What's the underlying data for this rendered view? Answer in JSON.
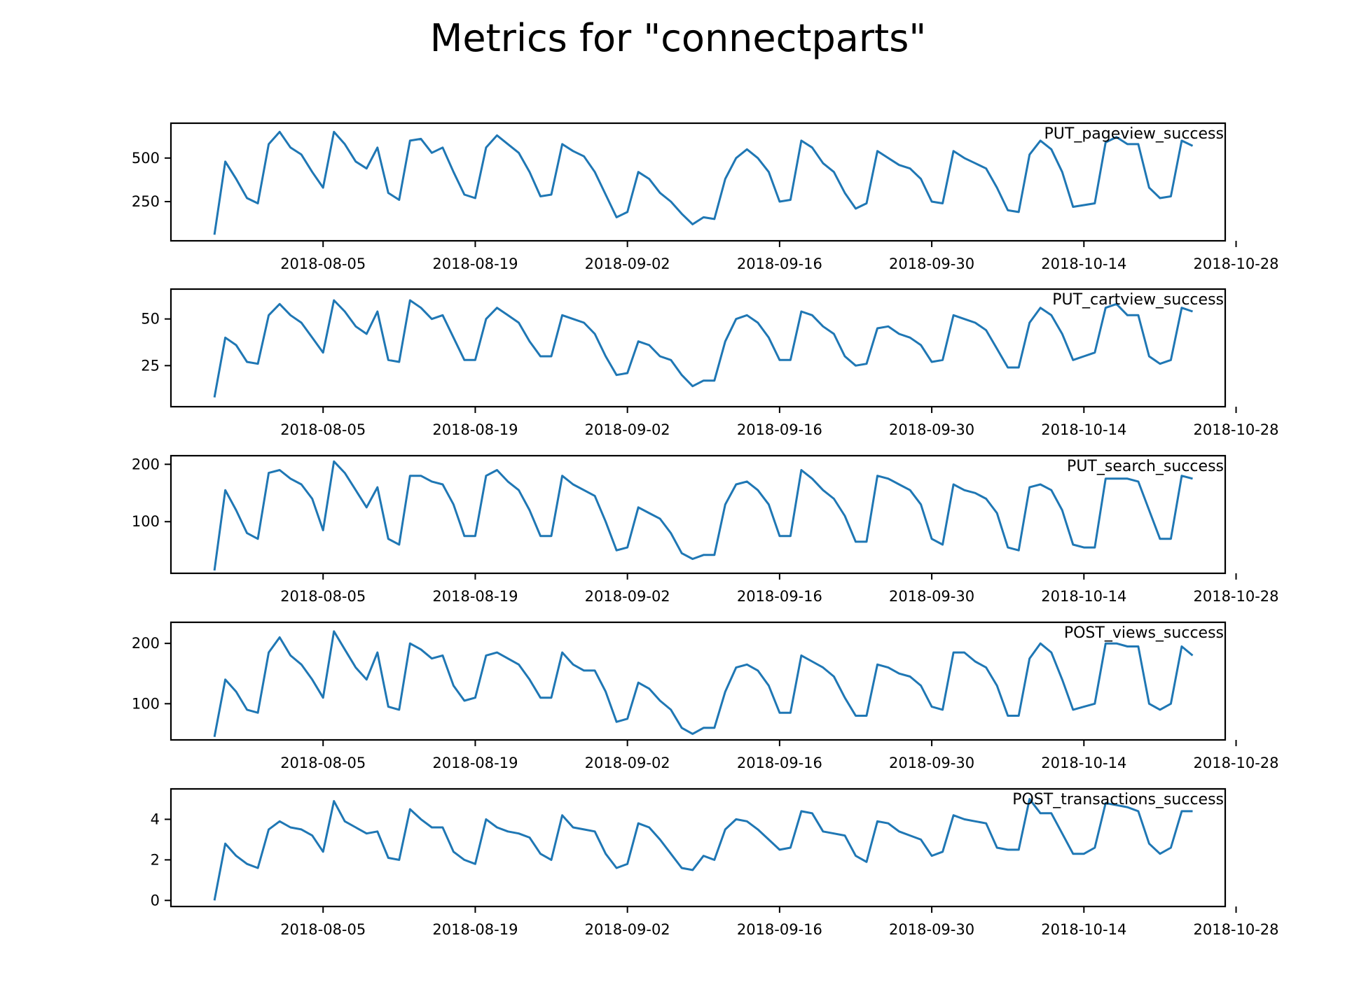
{
  "figure": {
    "title": "Metrics for \"connectparts\""
  },
  "colors": {
    "line": "#1f77b4",
    "axis": "#000000",
    "background": "#ffffff"
  },
  "chart_data": [
    {
      "type": "line",
      "label": "PUT_pageview_success",
      "xlim": [
        "2018-07-22",
        "2018-10-27"
      ],
      "ylim": [
        25,
        700
      ],
      "x_ticks": [
        "2018-08-05",
        "2018-08-19",
        "2018-09-02",
        "2018-09-16",
        "2018-09-30",
        "2018-10-14",
        "2018-10-28"
      ],
      "y_ticks": [
        250,
        500
      ],
      "x": [
        "2018-07-26",
        "2018-07-27",
        "2018-07-28",
        "2018-07-29",
        "2018-07-30",
        "2018-07-31",
        "2018-08-01",
        "2018-08-02",
        "2018-08-03",
        "2018-08-04",
        "2018-08-05",
        "2018-08-06",
        "2018-08-07",
        "2018-08-08",
        "2018-08-09",
        "2018-08-10",
        "2018-08-11",
        "2018-08-12",
        "2018-08-13",
        "2018-08-14",
        "2018-08-15",
        "2018-08-16",
        "2018-08-17",
        "2018-08-18",
        "2018-08-19",
        "2018-08-20",
        "2018-08-21",
        "2018-08-22",
        "2018-08-23",
        "2018-08-24",
        "2018-08-25",
        "2018-08-26",
        "2018-08-27",
        "2018-08-28",
        "2018-08-29",
        "2018-08-30",
        "2018-08-31",
        "2018-09-01",
        "2018-09-02",
        "2018-09-03",
        "2018-09-04",
        "2018-09-05",
        "2018-09-06",
        "2018-09-07",
        "2018-09-08",
        "2018-09-09",
        "2018-09-10",
        "2018-09-11",
        "2018-09-12",
        "2018-09-13",
        "2018-09-14",
        "2018-09-15",
        "2018-09-16",
        "2018-09-17",
        "2018-09-18",
        "2018-09-19",
        "2018-09-20",
        "2018-09-21",
        "2018-09-22",
        "2018-09-23",
        "2018-09-24",
        "2018-09-25",
        "2018-09-26",
        "2018-09-27",
        "2018-09-28",
        "2018-09-29",
        "2018-09-30",
        "2018-10-01",
        "2018-10-02",
        "2018-10-03",
        "2018-10-04",
        "2018-10-05",
        "2018-10-06",
        "2018-10-07",
        "2018-10-08",
        "2018-10-09",
        "2018-10-10",
        "2018-10-11",
        "2018-10-12",
        "2018-10-13",
        "2018-10-14",
        "2018-10-15",
        "2018-10-16",
        "2018-10-17",
        "2018-10-18",
        "2018-10-19",
        "2018-10-20",
        "2018-10-21",
        "2018-10-22",
        "2018-10-23",
        "2018-10-24"
      ],
      "values": [
        60,
        480,
        380,
        270,
        240,
        580,
        650,
        560,
        520,
        420,
        330,
        650,
        580,
        480,
        440,
        560,
        300,
        260,
        600,
        610,
        530,
        560,
        420,
        290,
        270,
        560,
        630,
        580,
        530,
        420,
        280,
        290,
        580,
        540,
        510,
        420,
        290,
        160,
        190,
        420,
        380,
        300,
        250,
        180,
        120,
        160,
        150,
        380,
        500,
        550,
        500,
        420,
        250,
        260,
        600,
        560,
        470,
        420,
        300,
        210,
        240,
        540,
        500,
        460,
        440,
        380,
        250,
        240,
        540,
        500,
        470,
        440,
        330,
        200,
        190,
        520,
        600,
        550,
        420,
        220,
        230,
        240,
        590,
        620,
        580,
        580,
        330,
        270,
        280,
        600,
        570
      ]
    },
    {
      "type": "line",
      "label": "PUT_cartview_success",
      "xlim": [
        "2018-07-22",
        "2018-10-27"
      ],
      "ylim": [
        3,
        66
      ],
      "x_ticks": [
        "2018-08-05",
        "2018-08-19",
        "2018-09-02",
        "2018-09-16",
        "2018-09-30",
        "2018-10-14",
        "2018-10-28"
      ],
      "y_ticks": [
        25,
        50
      ],
      "x": [
        "2018-07-26",
        "2018-07-27",
        "2018-07-28",
        "2018-07-29",
        "2018-07-30",
        "2018-07-31",
        "2018-08-01",
        "2018-08-02",
        "2018-08-03",
        "2018-08-04",
        "2018-08-05",
        "2018-08-06",
        "2018-08-07",
        "2018-08-08",
        "2018-08-09",
        "2018-08-10",
        "2018-08-11",
        "2018-08-12",
        "2018-08-13",
        "2018-08-14",
        "2018-08-15",
        "2018-08-16",
        "2018-08-17",
        "2018-08-18",
        "2018-08-19",
        "2018-08-20",
        "2018-08-21",
        "2018-08-22",
        "2018-08-23",
        "2018-08-24",
        "2018-08-25",
        "2018-08-26",
        "2018-08-27",
        "2018-08-28",
        "2018-08-29",
        "2018-08-30",
        "2018-08-31",
        "2018-09-01",
        "2018-09-02",
        "2018-09-03",
        "2018-09-04",
        "2018-09-05",
        "2018-09-06",
        "2018-09-07",
        "2018-09-08",
        "2018-09-09",
        "2018-09-10",
        "2018-09-11",
        "2018-09-12",
        "2018-09-13",
        "2018-09-14",
        "2018-09-15",
        "2018-09-16",
        "2018-09-17",
        "2018-09-18",
        "2018-09-19",
        "2018-09-20",
        "2018-09-21",
        "2018-09-22",
        "2018-09-23",
        "2018-09-24",
        "2018-09-25",
        "2018-09-26",
        "2018-09-27",
        "2018-09-28",
        "2018-09-29",
        "2018-09-30",
        "2018-10-01",
        "2018-10-02",
        "2018-10-03",
        "2018-10-04",
        "2018-10-05",
        "2018-10-06",
        "2018-10-07",
        "2018-10-08",
        "2018-10-09",
        "2018-10-10",
        "2018-10-11",
        "2018-10-12",
        "2018-10-13",
        "2018-10-14",
        "2018-10-15",
        "2018-10-16",
        "2018-10-17",
        "2018-10-18",
        "2018-10-19",
        "2018-10-20",
        "2018-10-21",
        "2018-10-22",
        "2018-10-23",
        "2018-10-24"
      ],
      "values": [
        8,
        40,
        36,
        27,
        26,
        52,
        58,
        52,
        48,
        40,
        32,
        60,
        54,
        46,
        42,
        54,
        28,
        27,
        60,
        56,
        50,
        52,
        40,
        28,
        28,
        50,
        56,
        52,
        48,
        38,
        30,
        30,
        52,
        50,
        48,
        42,
        30,
        20,
        21,
        38,
        36,
        30,
        28,
        20,
        14,
        17,
        17,
        38,
        50,
        52,
        48,
        40,
        28,
        28,
        54,
        52,
        46,
        42,
        30,
        25,
        26,
        45,
        46,
        42,
        40,
        36,
        27,
        28,
        52,
        50,
        48,
        44,
        34,
        24,
        24,
        48,
        56,
        52,
        42,
        28,
        30,
        32,
        56,
        58,
        52,
        52,
        30,
        26,
        28,
        56,
        54
      ]
    },
    {
      "type": "line",
      "label": "PUT_search_success",
      "xlim": [
        "2018-07-22",
        "2018-10-27"
      ],
      "ylim": [
        10,
        215
      ],
      "x_ticks": [
        "2018-08-05",
        "2018-08-19",
        "2018-09-02",
        "2018-09-16",
        "2018-09-30",
        "2018-10-14",
        "2018-10-28"
      ],
      "y_ticks": [
        100,
        200
      ],
      "x": [
        "2018-07-26",
        "2018-07-27",
        "2018-07-28",
        "2018-07-29",
        "2018-07-30",
        "2018-07-31",
        "2018-08-01",
        "2018-08-02",
        "2018-08-03",
        "2018-08-04",
        "2018-08-05",
        "2018-08-06",
        "2018-08-07",
        "2018-08-08",
        "2018-08-09",
        "2018-08-10",
        "2018-08-11",
        "2018-08-12",
        "2018-08-13",
        "2018-08-14",
        "2018-08-15",
        "2018-08-16",
        "2018-08-17",
        "2018-08-18",
        "2018-08-19",
        "2018-08-20",
        "2018-08-21",
        "2018-08-22",
        "2018-08-23",
        "2018-08-24",
        "2018-08-25",
        "2018-08-26",
        "2018-08-27",
        "2018-08-28",
        "2018-08-29",
        "2018-08-30",
        "2018-08-31",
        "2018-09-01",
        "2018-09-02",
        "2018-09-03",
        "2018-09-04",
        "2018-09-05",
        "2018-09-06",
        "2018-09-07",
        "2018-09-08",
        "2018-09-09",
        "2018-09-10",
        "2018-09-11",
        "2018-09-12",
        "2018-09-13",
        "2018-09-14",
        "2018-09-15",
        "2018-09-16",
        "2018-09-17",
        "2018-09-18",
        "2018-09-19",
        "2018-09-20",
        "2018-09-21",
        "2018-09-22",
        "2018-09-23",
        "2018-09-24",
        "2018-09-25",
        "2018-09-26",
        "2018-09-27",
        "2018-09-28",
        "2018-09-29",
        "2018-09-30",
        "2018-10-01",
        "2018-10-02",
        "2018-10-03",
        "2018-10-04",
        "2018-10-05",
        "2018-10-06",
        "2018-10-07",
        "2018-10-08",
        "2018-10-09",
        "2018-10-10",
        "2018-10-11",
        "2018-10-12",
        "2018-10-13",
        "2018-10-14",
        "2018-10-15",
        "2018-10-16",
        "2018-10-17",
        "2018-10-18",
        "2018-10-19",
        "2018-10-20",
        "2018-10-21",
        "2018-10-22",
        "2018-10-23",
        "2018-10-24"
      ],
      "values": [
        15,
        155,
        120,
        80,
        70,
        185,
        190,
        175,
        165,
        140,
        85,
        205,
        185,
        155,
        125,
        160,
        70,
        60,
        180,
        180,
        170,
        165,
        130,
        75,
        75,
        180,
        190,
        170,
        155,
        120,
        75,
        75,
        180,
        165,
        155,
        145,
        100,
        50,
        55,
        125,
        115,
        105,
        80,
        45,
        35,
        42,
        42,
        130,
        165,
        170,
        155,
        130,
        75,
        75,
        190,
        175,
        155,
        140,
        110,
        65,
        65,
        180,
        175,
        165,
        155,
        130,
        70,
        60,
        165,
        155,
        150,
        140,
        115,
        55,
        50,
        160,
        165,
        155,
        120,
        60,
        55,
        55,
        175,
        175,
        175,
        170,
        120,
        70,
        70,
        180,
        175
      ]
    },
    {
      "type": "line",
      "label": "POST_views_success",
      "xlim": [
        "2018-07-22",
        "2018-10-27"
      ],
      "ylim": [
        40,
        235
      ],
      "x_ticks": [
        "2018-08-05",
        "2018-08-19",
        "2018-09-02",
        "2018-09-16",
        "2018-09-30",
        "2018-10-14",
        "2018-10-28"
      ],
      "y_ticks": [
        100,
        200
      ],
      "x": [
        "2018-07-26",
        "2018-07-27",
        "2018-07-28",
        "2018-07-29",
        "2018-07-30",
        "2018-07-31",
        "2018-08-01",
        "2018-08-02",
        "2018-08-03",
        "2018-08-04",
        "2018-08-05",
        "2018-08-06",
        "2018-08-07",
        "2018-08-08",
        "2018-08-09",
        "2018-08-10",
        "2018-08-11",
        "2018-08-12",
        "2018-08-13",
        "2018-08-14",
        "2018-08-15",
        "2018-08-16",
        "2018-08-17",
        "2018-08-18",
        "2018-08-19",
        "2018-08-20",
        "2018-08-21",
        "2018-08-22",
        "2018-08-23",
        "2018-08-24",
        "2018-08-25",
        "2018-08-26",
        "2018-08-27",
        "2018-08-28",
        "2018-08-29",
        "2018-08-30",
        "2018-08-31",
        "2018-09-01",
        "2018-09-02",
        "2018-09-03",
        "2018-09-04",
        "2018-09-05",
        "2018-09-06",
        "2018-09-07",
        "2018-09-08",
        "2018-09-09",
        "2018-09-10",
        "2018-09-11",
        "2018-09-12",
        "2018-09-13",
        "2018-09-14",
        "2018-09-15",
        "2018-09-16",
        "2018-09-17",
        "2018-09-18",
        "2018-09-19",
        "2018-09-20",
        "2018-09-21",
        "2018-09-22",
        "2018-09-23",
        "2018-09-24",
        "2018-09-25",
        "2018-09-26",
        "2018-09-27",
        "2018-09-28",
        "2018-09-29",
        "2018-09-30",
        "2018-10-01",
        "2018-10-02",
        "2018-10-03",
        "2018-10-04",
        "2018-10-05",
        "2018-10-06",
        "2018-10-07",
        "2018-10-08",
        "2018-10-09",
        "2018-10-10",
        "2018-10-11",
        "2018-10-12",
        "2018-10-13",
        "2018-10-14",
        "2018-10-15",
        "2018-10-16",
        "2018-10-17",
        "2018-10-18",
        "2018-10-19",
        "2018-10-20",
        "2018-10-21",
        "2018-10-22",
        "2018-10-23",
        "2018-10-24"
      ],
      "values": [
        45,
        140,
        120,
        90,
        85,
        185,
        210,
        180,
        165,
        140,
        110,
        220,
        190,
        160,
        140,
        185,
        95,
        90,
        200,
        190,
        175,
        180,
        130,
        105,
        110,
        180,
        185,
        175,
        165,
        140,
        110,
        110,
        185,
        165,
        155,
        155,
        120,
        70,
        75,
        135,
        125,
        105,
        90,
        60,
        50,
        60,
        60,
        120,
        160,
        165,
        155,
        130,
        85,
        85,
        180,
        170,
        160,
        145,
        110,
        80,
        80,
        165,
        160,
        150,
        145,
        130,
        95,
        90,
        185,
        185,
        170,
        160,
        130,
        80,
        80,
        175,
        200,
        185,
        140,
        90,
        95,
        100,
        200,
        200,
        195,
        195,
        100,
        90,
        100,
        195,
        180
      ]
    },
    {
      "type": "line",
      "label": "POST_transactions_success",
      "xlim": [
        "2018-07-22",
        "2018-10-27"
      ],
      "ylim": [
        -0.3,
        5.5
      ],
      "x_ticks": [
        "2018-08-05",
        "2018-08-19",
        "2018-09-02",
        "2018-09-16",
        "2018-09-30",
        "2018-10-14",
        "2018-10-28"
      ],
      "y_ticks": [
        0,
        2,
        4
      ],
      "x": [
        "2018-07-26",
        "2018-07-27",
        "2018-07-28",
        "2018-07-29",
        "2018-07-30",
        "2018-07-31",
        "2018-08-01",
        "2018-08-02",
        "2018-08-03",
        "2018-08-04",
        "2018-08-05",
        "2018-08-06",
        "2018-08-07",
        "2018-08-08",
        "2018-08-09",
        "2018-08-10",
        "2018-08-11",
        "2018-08-12",
        "2018-08-13",
        "2018-08-14",
        "2018-08-15",
        "2018-08-16",
        "2018-08-17",
        "2018-08-18",
        "2018-08-19",
        "2018-08-20",
        "2018-08-21",
        "2018-08-22",
        "2018-08-23",
        "2018-08-24",
        "2018-08-25",
        "2018-08-26",
        "2018-08-27",
        "2018-08-28",
        "2018-08-29",
        "2018-08-30",
        "2018-08-31",
        "2018-09-01",
        "2018-09-02",
        "2018-09-03",
        "2018-09-04",
        "2018-09-05",
        "2018-09-06",
        "2018-09-07",
        "2018-09-08",
        "2018-09-09",
        "2018-09-10",
        "2018-09-11",
        "2018-09-12",
        "2018-09-13",
        "2018-09-14",
        "2018-09-15",
        "2018-09-16",
        "2018-09-17",
        "2018-09-18",
        "2018-09-19",
        "2018-09-20",
        "2018-09-21",
        "2018-09-22",
        "2018-09-23",
        "2018-09-24",
        "2018-09-25",
        "2018-09-26",
        "2018-09-27",
        "2018-09-28",
        "2018-09-29",
        "2018-09-30",
        "2018-10-01",
        "2018-10-02",
        "2018-10-03",
        "2018-10-04",
        "2018-10-05",
        "2018-10-06",
        "2018-10-07",
        "2018-10-08",
        "2018-10-09",
        "2018-10-10",
        "2018-10-11",
        "2018-10-12",
        "2018-10-13",
        "2018-10-14",
        "2018-10-15",
        "2018-10-16",
        "2018-10-17",
        "2018-10-18",
        "2018-10-19",
        "2018-10-20",
        "2018-10-21",
        "2018-10-22",
        "2018-10-23",
        "2018-10-24"
      ],
      "values": [
        0,
        2.8,
        2.2,
        1.8,
        1.6,
        3.5,
        3.9,
        3.6,
        3.5,
        3.2,
        2.4,
        4.9,
        3.9,
        3.6,
        3.3,
        3.4,
        2.1,
        2.0,
        4.5,
        4.0,
        3.6,
        3.6,
        2.4,
        2.0,
        1.8,
        4.0,
        3.6,
        3.4,
        3.3,
        3.1,
        2.3,
        2.0,
        4.2,
        3.6,
        3.5,
        3.4,
        2.3,
        1.6,
        1.8,
        3.8,
        3.6,
        3.0,
        2.3,
        1.6,
        1.5,
        2.2,
        2.0,
        3.5,
        4.0,
        3.9,
        3.5,
        3.0,
        2.5,
        2.6,
        4.4,
        4.3,
        3.4,
        3.3,
        3.2,
        2.2,
        1.9,
        3.9,
        3.8,
        3.4,
        3.2,
        3.0,
        2.2,
        2.4,
        4.2,
        4.0,
        3.9,
        3.8,
        2.6,
        2.5,
        2.5,
        5.0,
        4.3,
        4.3,
        3.3,
        2.3,
        2.3,
        2.6,
        4.8,
        4.7,
        4.6,
        4.4,
        2.8,
        2.3,
        2.6,
        4.4,
        4.4
      ]
    }
  ]
}
